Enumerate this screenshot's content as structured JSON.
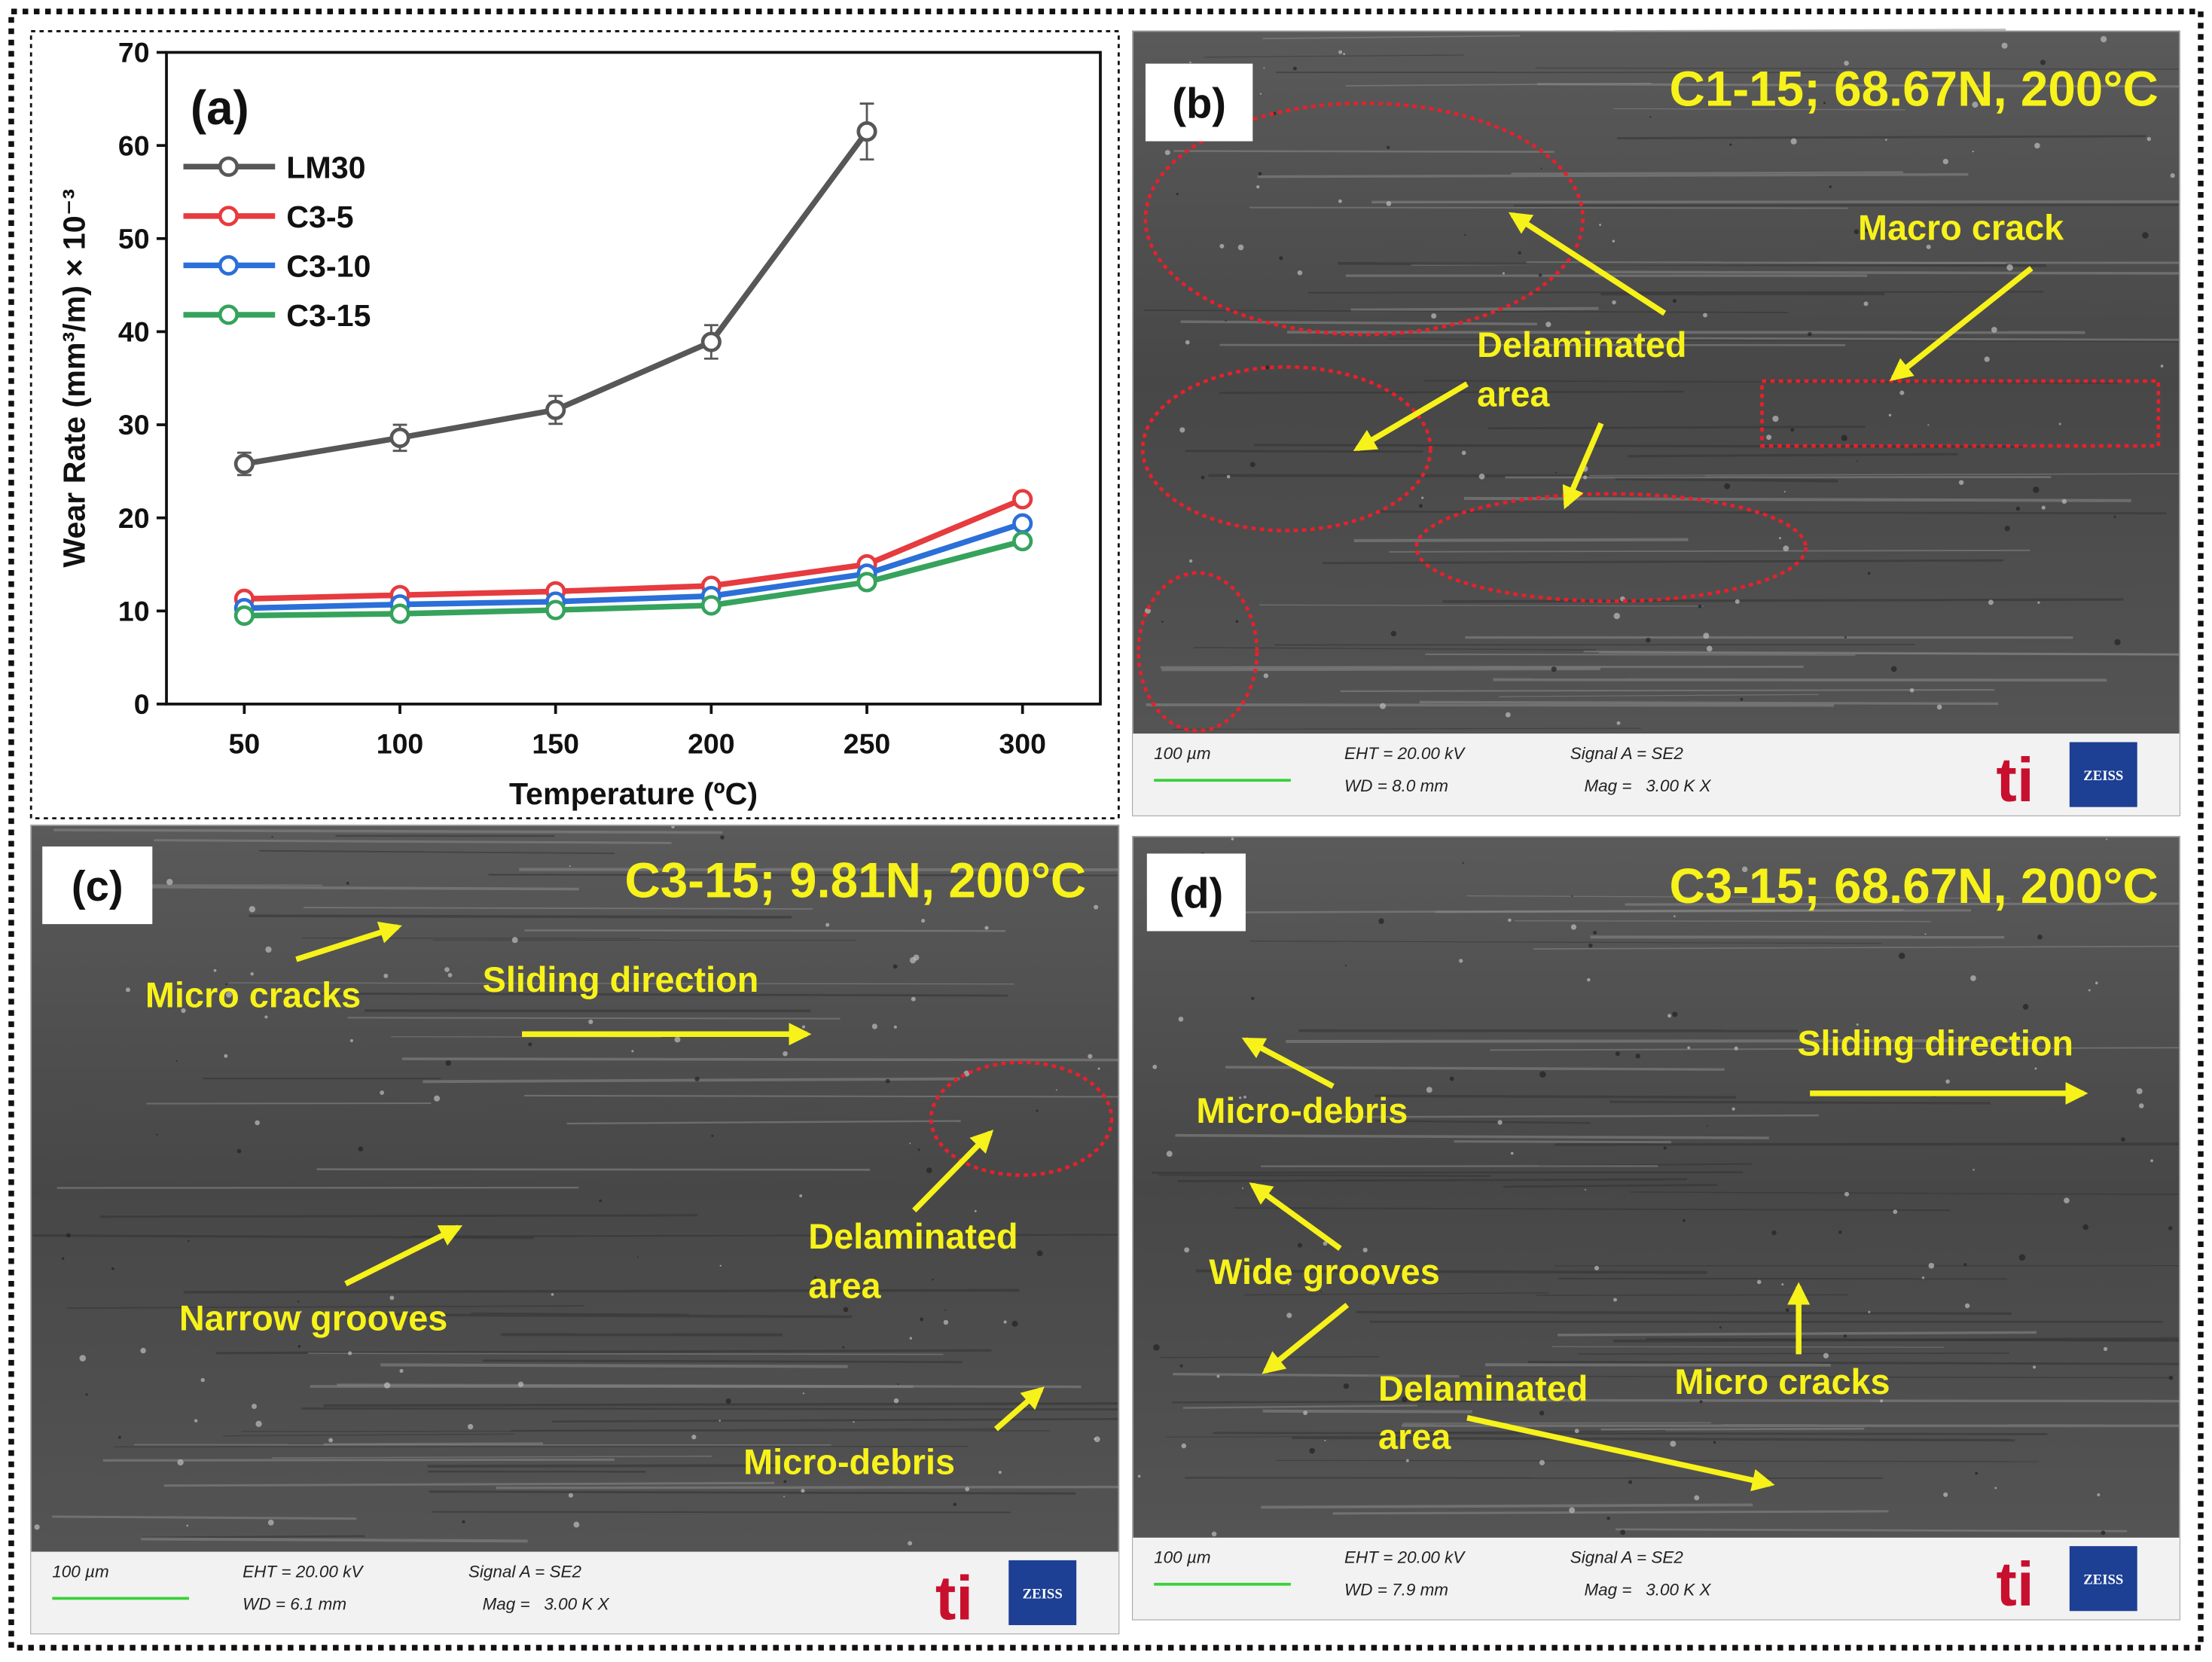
{
  "chart_data": {
    "type": "line",
    "panel_label": "(a)",
    "xlabel": "Temperature (ºC)",
    "ylabel": "Wear Rate (mm³/m) × 10⁻³",
    "x": [
      50,
      100,
      150,
      200,
      250,
      300
    ],
    "series": [
      {
        "name": "LM30",
        "color": "#575757",
        "values": [
          25.8,
          28.6,
          31.6,
          38.9,
          61.5,
          null
        ],
        "errors": [
          1.2,
          1.4,
          1.5,
          1.8,
          3.0,
          null
        ]
      },
      {
        "name": "C3-5",
        "color": "#e63b3f",
        "values": [
          11.3,
          11.7,
          12.1,
          12.7,
          15.0,
          22.0
        ]
      },
      {
        "name": "C3-10",
        "color": "#2b6fd8",
        "values": [
          10.3,
          10.7,
          11.0,
          11.6,
          14.0,
          19.4
        ]
      },
      {
        "name": "C3-15",
        "color": "#35a35c",
        "values": [
          9.5,
          9.7,
          10.1,
          10.6,
          13.1,
          17.5
        ]
      }
    ],
    "xlim": [
      25,
      325
    ],
    "xticks": [
      50,
      100,
      150,
      200,
      250,
      300
    ],
    "ylim": [
      0,
      70
    ],
    "yticks": [
      0,
      10,
      20,
      30,
      40,
      50,
      60,
      70
    ],
    "legend": "upper left"
  },
  "panels": [
    {
      "label": "(b)",
      "title": "C1-15; 68.67N, 200°C",
      "annotations": [
        {
          "lines": [
            "Macro crack"
          ]
        },
        {
          "lines": [
            "Delaminated",
            "area"
          ]
        }
      ],
      "info": {
        "scale": "100 µm",
        "eht": "EHT = 20.00 kV",
        "wd": "WD = 8.0 mm",
        "signal": "Signal A = SE2",
        "mag": "Mag =   3.00 K X",
        "logo": "ti",
        "brand": "ZEISS"
      }
    },
    {
      "label": "(c)",
      "title": "C3-15; 9.81N, 200°C",
      "annotations": [
        {
          "lines": [
            "Micro cracks"
          ]
        },
        {
          "lines": [
            "Sliding direction"
          ]
        },
        {
          "lines": [
            "Delaminated",
            "area"
          ]
        },
        {
          "lines": [
            "Narrow grooves"
          ]
        },
        {
          "lines": [
            "Micro-debris"
          ]
        }
      ],
      "info": {
        "scale": "100 µm",
        "eht": "EHT = 20.00 kV",
        "wd": "WD = 6.1 mm",
        "signal": "Signal A = SE2",
        "mag": "Mag =   3.00 K X",
        "logo": "ti",
        "brand": "ZEISS"
      }
    },
    {
      "label": "(d)",
      "title": "C3-15; 68.67N, 200°C",
      "annotations": [
        {
          "lines": [
            "Micro-debris"
          ]
        },
        {
          "lines": [
            "Sliding direction"
          ]
        },
        {
          "lines": [
            "Wide grooves"
          ]
        },
        {
          "lines": [
            "Delaminated",
            "area"
          ]
        },
        {
          "lines": [
            "Micro cracks"
          ]
        }
      ],
      "info": {
        "scale": "100 µm",
        "eht": "EHT = 20.00 kV",
        "wd": "WD = 7.9 mm",
        "signal": "Signal A = SE2",
        "mag": "Mag =   3.00 K X",
        "logo": "ti",
        "brand": "ZEISS"
      }
    }
  ]
}
